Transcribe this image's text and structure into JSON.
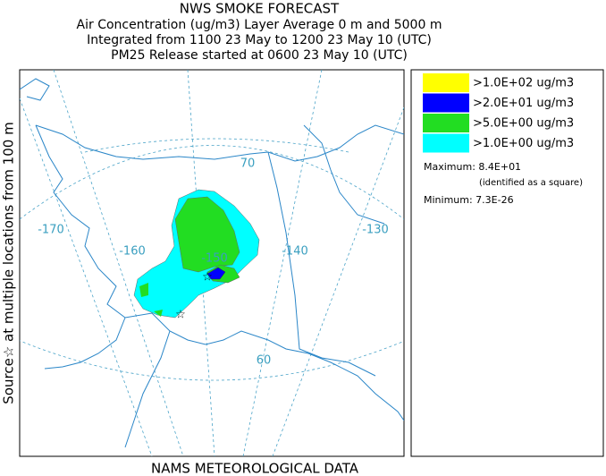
{
  "header": {
    "title": "NWS SMOKE FORECAST",
    "lines": [
      "Air Concentration (ug/m3) Layer Average    0 m and  5000 m",
      "Integrated from 1100 23 May to 1200 23 May 10 (UTC)",
      "PM25 Release started at 0600 23 May 10 (UTC)"
    ]
  },
  "side_label": "Source☆  at multiple locations   from  100 m",
  "footer": "NAMS METEOROLOGICAL DATA",
  "map": {
    "longitude_labels": [
      "-170",
      "-160",
      "-150",
      "-140",
      "-130"
    ],
    "latitude_labels": [
      "70",
      "60"
    ]
  },
  "legend": {
    "items": [
      {
        "label": ">1.0E+02 ug/m3",
        "color": "#ffff00"
      },
      {
        "label": ">2.0E+01 ug/m3",
        "color": "#0000ff"
      },
      {
        "label": ">5.0E+00 ug/m3",
        "color": "#22dd22"
      },
      {
        "label": ">1.0E+00 ug/m3",
        "color": "#00ffff"
      }
    ],
    "maximum": "Maximum: 8.4E+01",
    "maximum_note": "(identified as a square)",
    "minimum": "Minimum: 7.3E-26"
  }
}
